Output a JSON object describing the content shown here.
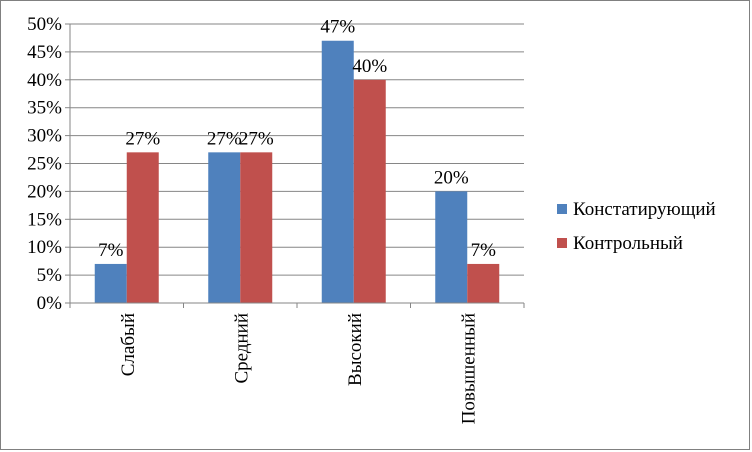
{
  "chart_data": {
    "type": "bar",
    "categories": [
      "Слабый",
      "Средний",
      "Высокий",
      "Повышенный"
    ],
    "series": [
      {
        "name": "Констатирующий",
        "color": "#4f81bd",
        "values": [
          7,
          27,
          47,
          20
        ]
      },
      {
        "name": "Контрольный",
        "color": "#c0504d",
        "values": [
          27,
          27,
          40,
          7
        ]
      }
    ],
    "ylim": [
      0,
      50
    ],
    "yticks": [
      0,
      5,
      10,
      15,
      20,
      25,
      30,
      35,
      40,
      45,
      50
    ],
    "ytick_labels": [
      "0%",
      "5%",
      "10%",
      "15%",
      "20%",
      "25%",
      "30%",
      "35%",
      "40%",
      "45%",
      "50%"
    ],
    "data_labels": [
      [
        "7%",
        "27%",
        "47%",
        "20%"
      ],
      [
        "27%",
        "27%",
        "40%",
        "7%"
      ]
    ],
    "grid": true,
    "legend": "right"
  }
}
